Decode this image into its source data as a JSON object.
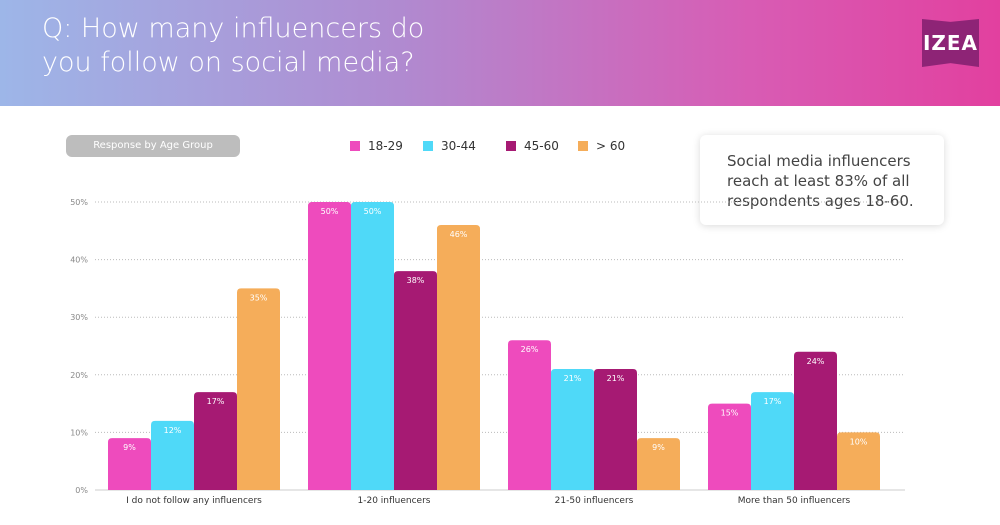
{
  "header": {
    "title": "Q: How many influencers do you follow on social media?",
    "logo_text": "IZEA"
  },
  "filter_pill": "Response by Age Group",
  "callout": "Social media influencers reach at least 83% of all respondents ages 18-60.",
  "chart_data": {
    "type": "bar",
    "categories": [
      "I do not follow any influencers",
      "1-20 influencers",
      "21-50 influencers",
      "More than 50 influencers"
    ],
    "series": [
      {
        "name": "18-29",
        "color": "#ee4bbd",
        "values": [
          9,
          50,
          26,
          15
        ]
      },
      {
        "name": "30-44",
        "color": "#4fd9f8",
        "values": [
          12,
          50,
          21,
          17
        ]
      },
      {
        "name": "45-60",
        "color": "#a61a73",
        "values": [
          17,
          38,
          21,
          24
        ]
      },
      {
        "name": "> 60",
        "color": "#f5ad5a",
        "values": [
          35,
          46,
          9,
          10
        ]
      }
    ],
    "yticks": [
      "0%",
      "10%",
      "20%",
      "30%",
      "40%",
      "50%"
    ],
    "ylim": [
      0,
      50
    ],
    "grid": true,
    "legend": "top"
  }
}
